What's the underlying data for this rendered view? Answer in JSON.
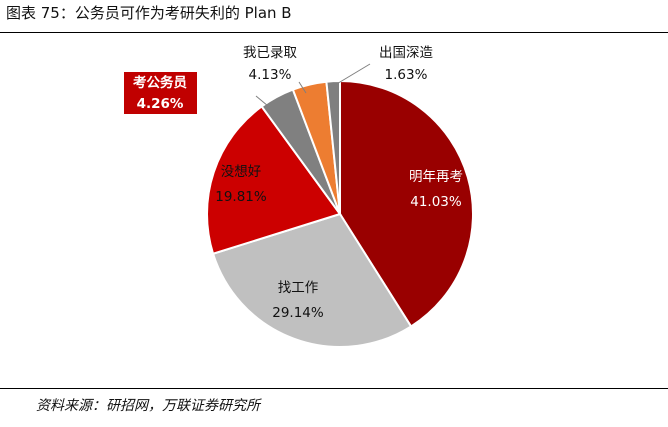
{
  "header": {
    "title": "图表 75：公务员可作为考研失利的 Plan B"
  },
  "footer": {
    "source": "资料来源：研招网，万联证券研究所"
  },
  "chart_data": {
    "type": "pie",
    "start_angle_deg": 0,
    "direction": "clockwise",
    "slices": [
      {
        "label": "明年再考",
        "value": 41.03,
        "value_text": "41.03%",
        "color": "#990000",
        "text_color": "#ffffff",
        "label_placement": "inside"
      },
      {
        "label": "找工作",
        "value": 29.14,
        "value_text": "29.14%",
        "color": "#c0c0c0",
        "text_color": "#111111",
        "label_placement": "inside"
      },
      {
        "label": "没想好",
        "value": 19.81,
        "value_text": "19.81%",
        "color": "#cc0000",
        "text_color": "#111111",
        "label_placement": "inside"
      },
      {
        "label": "考公务员",
        "value": 4.26,
        "value_text": "4.26%",
        "color": "#808080",
        "text_color": "#ffffff",
        "label_placement": "outside-boxed",
        "label_box_color": "#c00000"
      },
      {
        "label": "我已录取",
        "value": 4.13,
        "value_text": "4.13%",
        "color": "#ed7d31",
        "text_color": "#111111",
        "label_placement": "outside"
      },
      {
        "label": "出国深造",
        "value": 1.63,
        "value_text": "1.63%",
        "color": "#7f7f7f",
        "text_color": "#111111",
        "label_placement": "outside"
      }
    ],
    "slice_border_color": "#ffffff",
    "legend": "none"
  }
}
